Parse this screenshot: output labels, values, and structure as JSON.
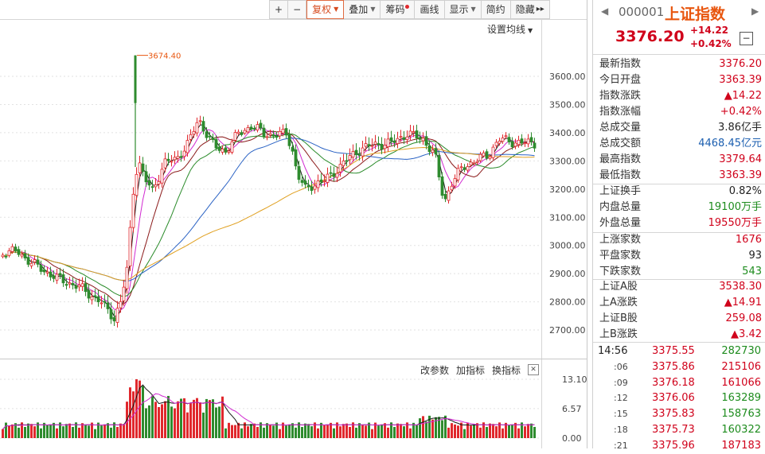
{
  "toolbar": {
    "plus": "+",
    "minus": "−",
    "fuquan": "复权",
    "diejia": "叠加",
    "chouma": "筹码",
    "huaxian": "画线",
    "xianshi": "显示",
    "jianyue": "简约",
    "yincang": "隐藏",
    "more": "▸▸"
  },
  "chart": {
    "ma_settings_label": "设置均线",
    "high_marker": "3674.40",
    "y_ticks": [
      "3600.00",
      "3500.00",
      "3400.00",
      "3300.00",
      "3200.00",
      "3100.00",
      "3000.00",
      "2900.00",
      "2800.00",
      "2700.00"
    ],
    "colors": {
      "up": "#e0282d",
      "down": "#2e8b2e",
      "ma5": "#1a1a1a",
      "ma10": "#d12ad1",
      "ma20": "#8b1a1a",
      "ma30": "#2a8b2a",
      "ma60": "#2a62c4",
      "ma120": "#e0a020"
    }
  },
  "indicator": {
    "change_params": "改参数",
    "add_indicator": "加指标",
    "switch_indicator": "换指标",
    "close": "✕",
    "y_ticks": [
      "13.10",
      "6.57",
      "0.00"
    ]
  },
  "quote": {
    "code": "000001",
    "name": "上证指数",
    "price": "3376.20",
    "change": "+14.22",
    "change_pct": "+0.42%",
    "collapse": "−",
    "prev_arrow": "◀",
    "next_arrow": "▶"
  },
  "stats": [
    {
      "k": "最新指数",
      "v": "3376.20",
      "c": "red"
    },
    {
      "k": "今日开盘",
      "v": "3363.39",
      "c": "red"
    },
    {
      "k": "指数涨跌",
      "v": "▲14.22",
      "c": "red"
    },
    {
      "k": "指数涨幅",
      "v": "+0.42%",
      "c": "red"
    },
    {
      "k": "总成交量",
      "v": "3.86亿手",
      "c": "dark"
    },
    {
      "k": "总成交额",
      "v": "4468.45亿元",
      "c": "blue"
    },
    {
      "k": "最高指数",
      "v": "3379.64",
      "c": "red"
    },
    {
      "k": "最低指数",
      "v": "3363.39",
      "c": "red"
    },
    {
      "k": "上证换手",
      "v": "0.82%",
      "c": "dark"
    },
    {
      "k": "内盘总量",
      "v": "19100万手",
      "c": "green"
    },
    {
      "k": "外盘总量",
      "v": "19550万手",
      "c": "red"
    },
    {
      "k": "上涨家数",
      "v": "1676",
      "c": "red"
    },
    {
      "k": "平盘家数",
      "v": "93",
      "c": "dark"
    },
    {
      "k": "下跌家数",
      "v": "543",
      "c": "green"
    },
    {
      "k": "上证A股",
      "v": "3538.30",
      "c": "red"
    },
    {
      "k": "上A涨跌",
      "v": "▲14.91",
      "c": "red"
    },
    {
      "k": "上证B股",
      "v": "259.08",
      "c": "red"
    },
    {
      "k": "上B涨跌",
      "v": "▲3.42",
      "c": "red"
    }
  ],
  "ticks": [
    {
      "t": "14:56",
      "p": "3375.55",
      "v": "282730",
      "vc": "green"
    },
    {
      "t": ":06",
      "p": "3375.86",
      "v": "215106",
      "vc": "red"
    },
    {
      "t": ":09",
      "p": "3376.18",
      "v": "161066",
      "vc": "red"
    },
    {
      "t": ":12",
      "p": "3376.06",
      "v": "163289",
      "vc": "green"
    },
    {
      "t": ":15",
      "p": "3375.83",
      "v": "158763",
      "vc": "green"
    },
    {
      "t": ":18",
      "p": "3375.73",
      "v": "160322",
      "vc": "green"
    },
    {
      "t": ":21",
      "p": "3375.96",
      "v": "187183",
      "vc": "red"
    }
  ]
}
